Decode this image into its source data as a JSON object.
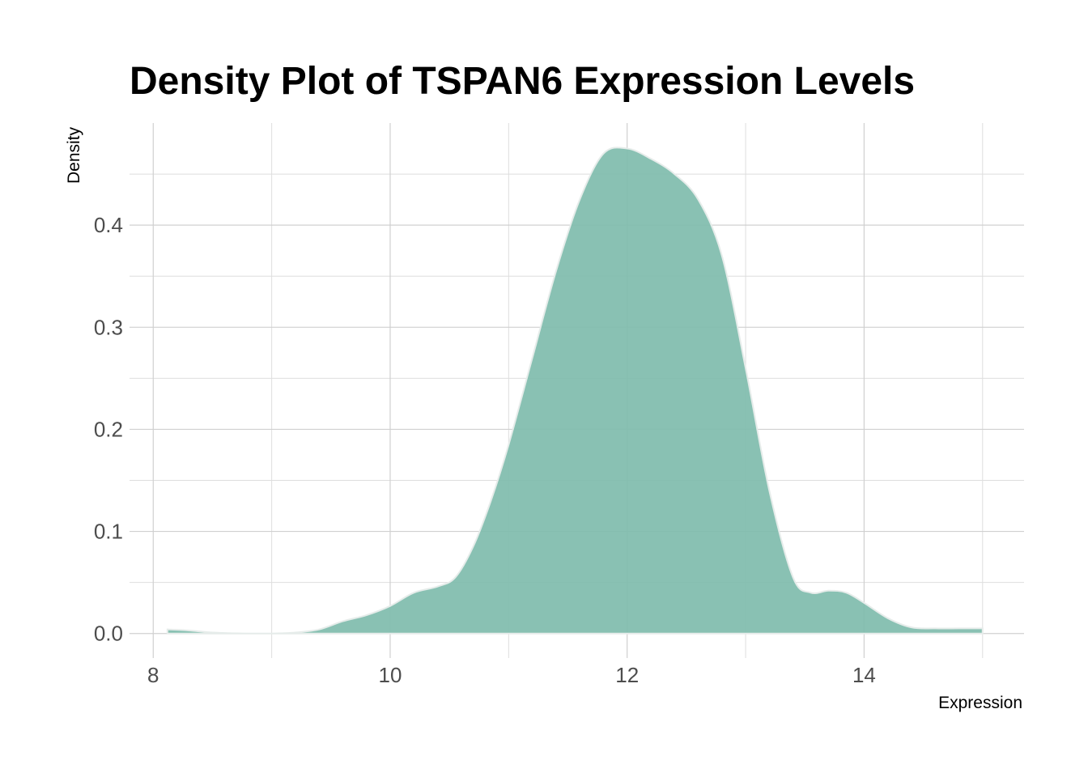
{
  "chart_data": {
    "type": "area",
    "title": "Density Plot of TSPAN6 Expression Levels",
    "xlabel": "Expression",
    "ylabel": "Density",
    "xlim": [
      7.8,
      15.35
    ],
    "ylim": [
      -0.024,
      0.5
    ],
    "x_ticks": [
      8,
      10,
      12,
      14
    ],
    "x_tick_labels": [
      "8",
      "10",
      "12",
      "14"
    ],
    "x_minor_ticks": [
      9,
      11,
      13,
      15
    ],
    "y_ticks": [
      0.0,
      0.1,
      0.2,
      0.3,
      0.4
    ],
    "y_tick_labels": [
      "0.0",
      "0.1",
      "0.2",
      "0.3",
      "0.4"
    ],
    "y_minor_ticks": [
      0.05,
      0.15,
      0.25,
      0.35,
      0.45
    ],
    "grid": true,
    "legend": "none",
    "fill_color": "#7fbcac",
    "outline_color": "#e6ecea",
    "series": [
      {
        "x": [
          8.12,
          8.3,
          8.5,
          8.8,
          9.0,
          9.2,
          9.4,
          9.6,
          9.8,
          10.0,
          10.2,
          10.4,
          10.55,
          10.7,
          10.85,
          11.0,
          11.2,
          11.4,
          11.6,
          11.8,
          12.0,
          12.2,
          12.4,
          12.6,
          12.8,
          13.0,
          13.2,
          13.4,
          13.55,
          13.7,
          13.85,
          14.0,
          14.2,
          14.4,
          14.6,
          14.8,
          15.0
        ],
        "y": [
          0.004,
          0.003,
          0.001,
          0.0,
          0.0,
          0.001,
          0.004,
          0.012,
          0.018,
          0.027,
          0.04,
          0.046,
          0.055,
          0.085,
          0.13,
          0.185,
          0.27,
          0.355,
          0.425,
          0.47,
          0.475,
          0.465,
          0.45,
          0.425,
          0.37,
          0.26,
          0.14,
          0.055,
          0.04,
          0.042,
          0.04,
          0.03,
          0.015,
          0.006,
          0.005,
          0.005,
          0.005
        ]
      }
    ]
  }
}
